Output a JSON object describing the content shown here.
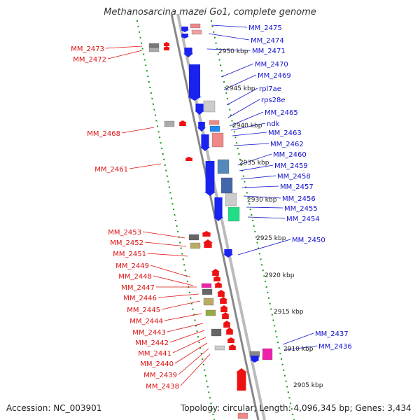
{
  "title": "Methanosarcina mazei Go1, complete genome",
  "footer": {
    "accession": "Accession: NC_003901",
    "summary": "Topology: circular; Length: 4,096,345 bp; Genes: 3,434"
  },
  "colors": {
    "forward_label": "#1111cc",
    "reverse_label": "#dd1111",
    "forward_gene": "#1a22ee",
    "reverse_gene": "#ee1111",
    "backbone": "#999999",
    "tick": "#119911"
  },
  "kbp_ticks": [
    "2950 kbp",
    "2945 kbp",
    "2940 kbp",
    "2935 kbp",
    "2930 kbp",
    "2925 kbp",
    "2920 kbp",
    "2915 kbp",
    "2910 kbp",
    "2905 kbp"
  ],
  "forward_labels": [
    "MM_2475",
    "MM_2474",
    "MM_2471",
    "MM_2470",
    "MM_2469",
    "rpl7ae",
    "rps28e",
    "MM_2465",
    "ndk",
    "MM_2463",
    "MM_2462",
    "MM_2460",
    "MM_2459",
    "MM_2458",
    "MM_2457",
    "MM_2456",
    "MM_2455",
    "MM_2454",
    "MM_2450",
    "MM_2437",
    "MM_2436"
  ],
  "reverse_labels": [
    "MM_2473",
    "MM_2472",
    "MM_2468",
    "MM_2461",
    "MM_2453",
    "MM_2452",
    "MM_2451",
    "MM_2449",
    "MM_2448",
    "MM_2447",
    "MM_2446",
    "MM_2445",
    "MM_2444",
    "MM_2443",
    "MM_2442",
    "MM_2441",
    "MM_2440",
    "MM_2439",
    "MM_2438"
  ]
}
